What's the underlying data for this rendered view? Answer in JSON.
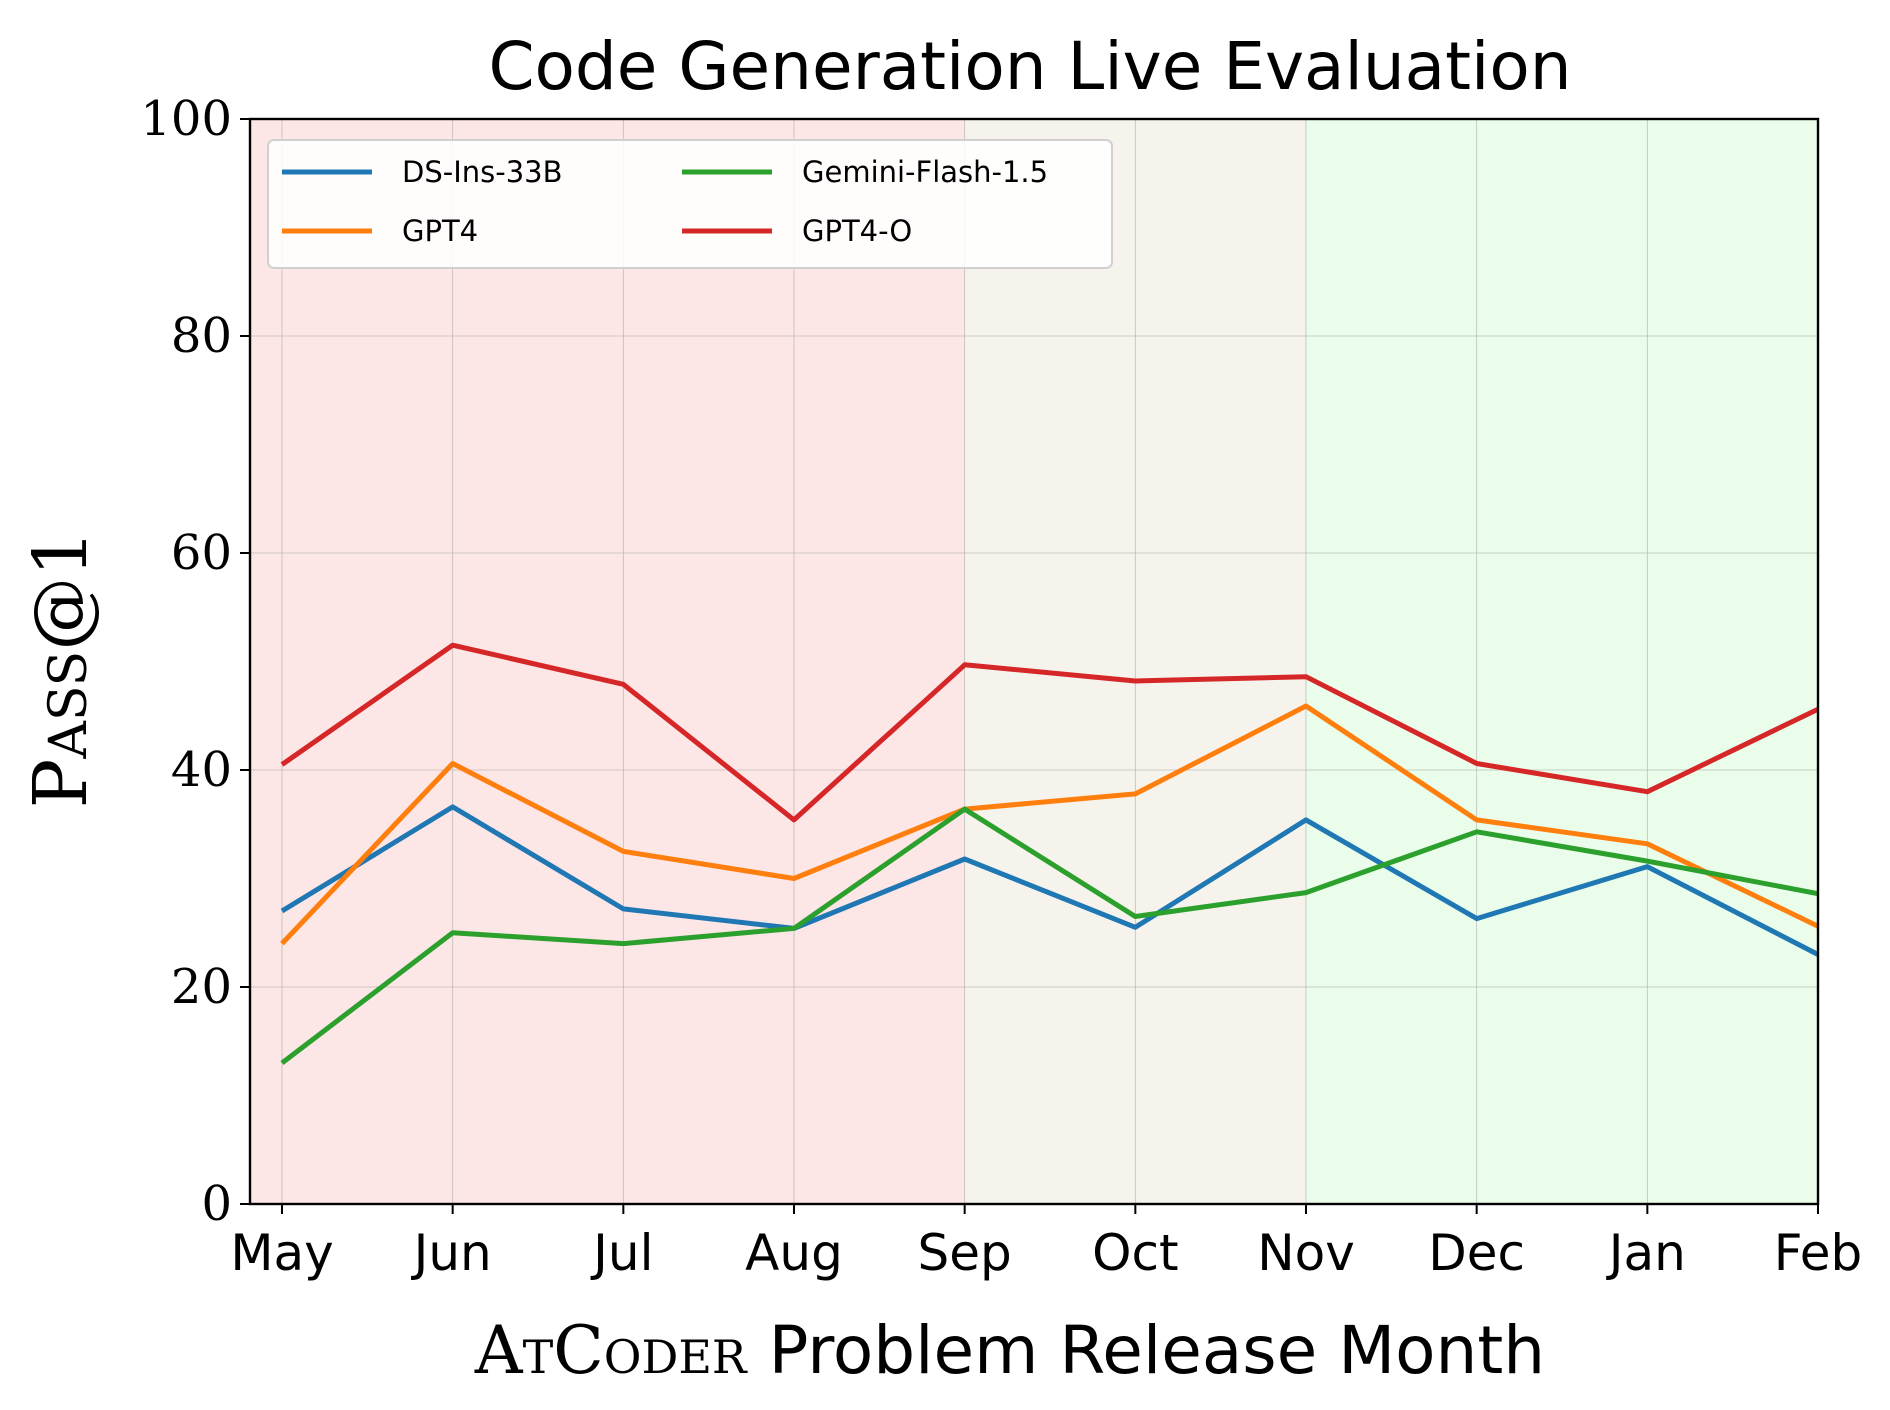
{
  "chart_data": {
    "type": "line",
    "title": "Code Generation Live Evaluation",
    "ylabel": "Pass@1",
    "xlabel": {
      "prefix": "AtCoder",
      "suffix": "Problem Release Month"
    },
    "categories": [
      "May",
      "Jun",
      "Jul",
      "Aug",
      "Sep",
      "Oct",
      "Nov",
      "Dec",
      "Jan",
      "Feb"
    ],
    "ylim": [
      0,
      100
    ],
    "yticks": [
      "0",
      "20",
      "40",
      "60",
      "80",
      "100"
    ],
    "ytick_values": [
      0,
      20,
      40,
      60,
      80,
      100
    ],
    "grid": true,
    "legend_position": "top-left",
    "background_bands": [
      {
        "from": -0.2,
        "to": 4,
        "color": "#fde6e6"
      },
      {
        "from": 4,
        "to": 6,
        "color": "#f6f3ec"
      },
      {
        "from": 6,
        "to": 9,
        "color": "#eafdea"
      }
    ],
    "series": [
      {
        "name": "DS-Ins-33B",
        "color": "#1f77b4",
        "values": [
          27,
          36.6,
          27.2,
          25.4,
          31.8,
          25.5,
          35.4,
          26.3,
          31.1,
          23
        ]
      },
      {
        "name": "GPT4",
        "color": "#ff7f0e",
        "values": [
          24,
          40.6,
          32.5,
          30,
          36.4,
          37.8,
          45.9,
          35.4,
          33.2,
          25.6
        ]
      },
      {
        "name": "Gemini-Flash-1.5",
        "color": "#2ca02c",
        "values": [
          13,
          25,
          24,
          25.4,
          36.4,
          26.5,
          28.7,
          34.3,
          31.6,
          28.6
        ]
      },
      {
        "name": "GPT4-O",
        "color": "#d62728",
        "values": [
          40.5,
          51.5,
          47.9,
          35.4,
          49.7,
          48.2,
          48.6,
          40.6,
          38,
          45.6
        ]
      }
    ]
  }
}
